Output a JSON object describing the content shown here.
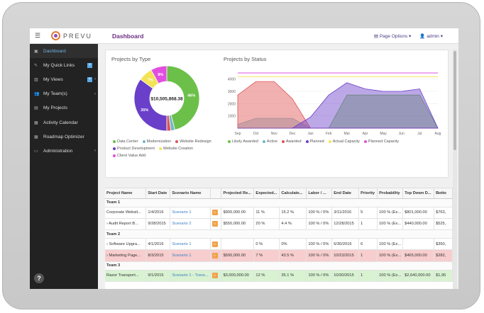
{
  "topbar": {
    "menu_icon": "list-icon",
    "logo_text": "PREVU",
    "title": "Dashboard",
    "page_options": "Page Options ▾",
    "user": "admin ▾"
  },
  "sidebar": {
    "items": [
      {
        "label": "Dashboard",
        "icon": "dashboard-icon",
        "active": true
      },
      {
        "label": "My Quick Links",
        "icon": "link-icon",
        "plus": true
      },
      {
        "label": "My Views",
        "icon": "image-icon",
        "plus": true,
        "caret": true
      },
      {
        "label": "My Team(s)",
        "icon": "users-icon",
        "caret": true
      },
      {
        "label": "My Projects",
        "icon": "briefcase-icon"
      },
      {
        "label": "Activity Calendar",
        "icon": "calendar-icon"
      },
      {
        "label": "Roadmap Optimizer",
        "icon": "table-icon"
      },
      {
        "label": "Administration",
        "icon": "monitor-icon",
        "caret": true
      }
    ],
    "help": "?"
  },
  "charts": {
    "type_title": "Projects by Type",
    "status_title": "Projects by Status"
  },
  "chart_data": [
    {
      "type": "pie",
      "title": "Projects by Type",
      "center_label": "$10,505,868.38",
      "slices": [
        {
          "name": "Data Center",
          "value": 46,
          "label": "46%",
          "color": "#6cc04a"
        },
        {
          "name": "Modernization",
          "value": 2,
          "label": "",
          "color": "#6fb8c9"
        },
        {
          "name": "Website Redesign",
          "value": 2,
          "label": "",
          "color": "#e05353"
        },
        {
          "name": "Product Development",
          "value": 35,
          "label": "35%",
          "color": "#6a3fc9"
        },
        {
          "name": "Website Creation",
          "value": 7,
          "label": "7%",
          "color": "#f3e357"
        },
        {
          "name": "Client Value Add",
          "value": 8,
          "label": "8%",
          "color": "#e24fe0"
        }
      ]
    },
    {
      "type": "area",
      "title": "Projects by Status",
      "categories": [
        "Sep",
        "Oct",
        "Nov",
        "Dec",
        "Jan",
        "Feb",
        "Mar",
        "Apr",
        "May",
        "Jun",
        "Jul",
        "Aug"
      ],
      "ylim": [
        0,
        4500
      ],
      "yticks": [
        "4000",
        "3000",
        "2000",
        "1000"
      ],
      "series": [
        {
          "name": "Likely Awarded",
          "color": "#6cc04a",
          "values": [
            0,
            0,
            0,
            0,
            0,
            0,
            2700,
            2700,
            2700,
            2700,
            2700,
            0
          ]
        },
        {
          "name": "Active",
          "color": "#6fb8c9",
          "values": [
            300,
            800,
            800,
            800,
            0,
            0,
            0,
            0,
            0,
            0,
            0,
            0
          ]
        },
        {
          "name": "Awarded",
          "color": "#e05353",
          "values": [
            2700,
            3800,
            3800,
            2400,
            0,
            0,
            0,
            0,
            0,
            0,
            0,
            0
          ]
        },
        {
          "name": "Planned",
          "color": "#6a3fc9",
          "values": [
            0,
            0,
            0,
            0,
            900,
            2700,
            3700,
            3200,
            3000,
            3000,
            3200,
            0
          ]
        },
        {
          "name": "Actual Capacity",
          "color": "#f3e357",
          "values": [
            4200,
            4200,
            4200,
            4200,
            4200,
            4200,
            4200,
            4200,
            4200,
            4200,
            4200,
            4200
          ]
        },
        {
          "name": "Planned Capacity",
          "color": "#e24fe0",
          "values": [
            4500,
            4500,
            4500,
            4500,
            4500,
            4500,
            4500,
            4500,
            4500,
            4500,
            4500,
            4500
          ]
        }
      ]
    }
  ],
  "table": {
    "headers": [
      "Project Name",
      "Start Date",
      "Scenario Name",
      "",
      "Projected Re...",
      "Expected...",
      "Calculate...",
      "Labor / ...",
      "End Date",
      "Priority",
      "Probability",
      "Top Down D...",
      "Botto"
    ],
    "rows": [
      {
        "kind": "group",
        "cells": [
          "Team 1"
        ]
      },
      {
        "kind": "row",
        "cells": [
          "Corporate Websit...",
          "1/4/2016",
          "Scenario 1",
          "☼",
          "$900,000.00",
          "11 %",
          "15.2 %",
          "100 % / 0%",
          "3/11/2016",
          "5",
          "100 % (Ex...",
          "$801,000.00",
          "$763,"
        ]
      },
      {
        "kind": "row",
        "cells": [
          "› Audit Report B...",
          "9/28/2015",
          "Scenario 2",
          "☼",
          "$550,000.00",
          "20 %",
          "4.4 %",
          "100 % / 0%",
          "12/28/2015",
          "1",
          "100 % (Ex...",
          "$440,000.00",
          "$525,"
        ]
      },
      {
        "kind": "group",
        "cells": [
          "Team 2"
        ]
      },
      {
        "kind": "row",
        "cells": [
          "› Software Upgra...",
          "4/1/2016",
          "Scenario 1",
          "☼",
          "",
          "0 %",
          "0%",
          "100 % / 0%",
          "6/30/2016",
          "6",
          "100 % (Ex...",
          "",
          "$350,"
        ]
      },
      {
        "kind": "red",
        "cells": [
          "› Marketing Page...",
          "8/3/2015",
          "Scenario 1",
          "☼",
          "$500,000.00",
          "7 %",
          "43.5 %",
          "100 % / 0%",
          "10/23/2015",
          "1",
          "100 % (Ex...",
          "$465,000.00",
          "$282,"
        ]
      },
      {
        "kind": "group",
        "cells": [
          "Team 3"
        ]
      },
      {
        "kind": "green",
        "cells": [
          "Razor Transport...",
          "9/1/2015",
          "Scenario 1 - Trans...",
          "☼",
          "$3,000,000.00",
          "12 %",
          "35.1 %",
          "100 % / 0%",
          "10/30/2015",
          "1",
          "100 % (Ex...",
          "$2,640,000.00",
          "$1,95"
        ]
      }
    ]
  }
}
